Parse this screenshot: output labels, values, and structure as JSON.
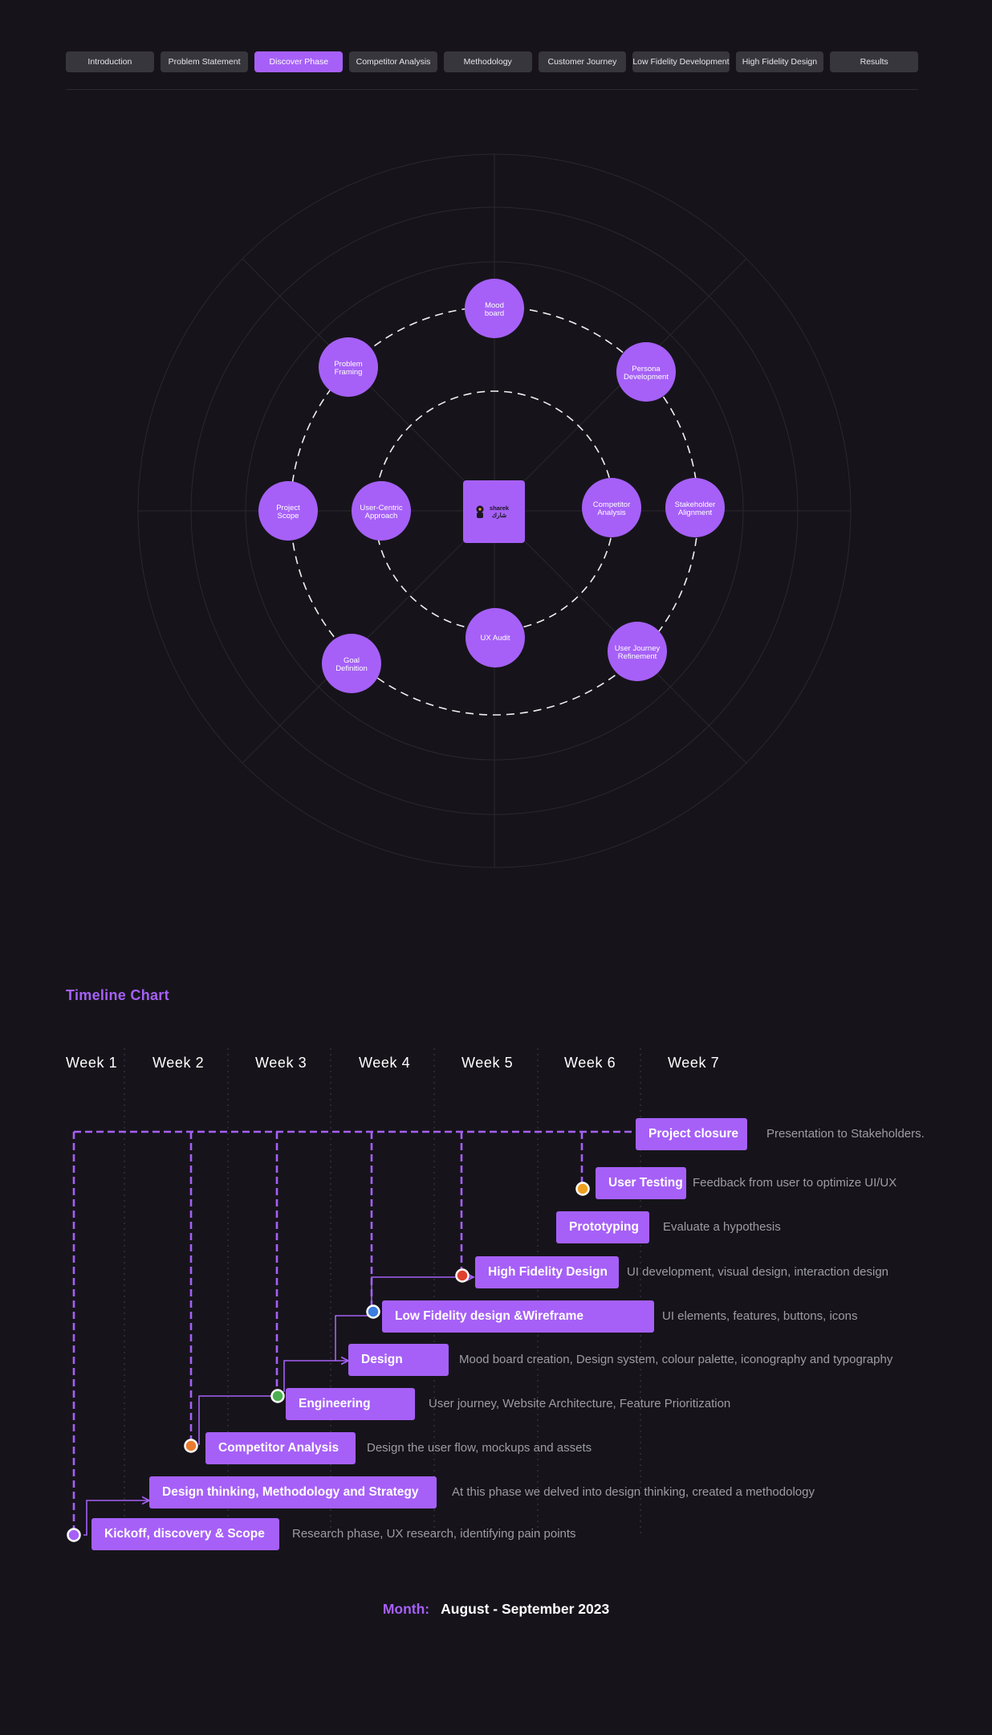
{
  "nav": {
    "tabs": [
      "Introduction",
      "Problem Statement",
      "Discover Phase",
      "Competitor Analysis",
      "Methodology",
      "Customer Journey",
      "Low Fidelity Development",
      "High Fidelity Design",
      "Results"
    ],
    "active_index": 2
  },
  "radial": {
    "center_logo": {
      "line1": "sharek",
      "line2": "شارك"
    },
    "outer_nodes": [
      {
        "lines": [
          "Mood",
          "board"
        ]
      },
      {
        "lines": [
          "Persona",
          "Development"
        ]
      },
      {
        "lines": [
          "Stakeholder",
          "Alignment"
        ]
      },
      {
        "lines": [
          "User Journey",
          "Refinement"
        ]
      },
      {
        "lines": [
          "Goal",
          "Definition"
        ]
      },
      {
        "lines": [
          "Project",
          "Scope"
        ]
      },
      {
        "lines": [
          "Problem",
          "Framing"
        ]
      }
    ],
    "inner_nodes": [
      {
        "lines": [
          "User-Centric",
          "Approach"
        ]
      },
      {
        "lines": [
          "Competitor",
          "Analysis"
        ]
      },
      {
        "lines": [
          "UX Audit"
        ]
      }
    ]
  },
  "timeline": {
    "title": "Timeline Chart",
    "weeks": [
      "Week 1",
      "Week 2",
      "Week 3",
      "Week 4",
      "Week 5",
      "Week 6",
      "Week 7"
    ],
    "tasks": [
      {
        "label": "Project closure",
        "desc": "Presentation to Stakeholders."
      },
      {
        "label": "User Testing",
        "desc": "Feedback from user to optimize UI/UX"
      },
      {
        "label": "Prototyping",
        "desc": "Evaluate a hypothesis"
      },
      {
        "label": "High Fidelity Design",
        "desc": "UI development, visual design, interaction design"
      },
      {
        "label": "Low Fidelity design &Wireframe",
        "desc": "UI elements, features, buttons, icons"
      },
      {
        "label": "Design",
        "desc": "Mood board creation, Design system, colour palette, iconography and typography"
      },
      {
        "label": "Engineering",
        "desc": "User journey, Website Architecture, Feature Prioritization"
      },
      {
        "label": "Competitor Analysis",
        "desc": "Design the user flow, mockups and assets"
      },
      {
        "label": "Design thinking, Methodology and Strategy",
        "desc": "At this phase we delved into design thinking, created a methodology"
      },
      {
        "label": "Kickoff, discovery & Scope",
        "desc": "Research phase, UX research, identifying pain points"
      }
    ],
    "month_label": "Month:",
    "month_value": "August - September 2023"
  },
  "colors": {
    "accent": "#a660f7",
    "background": "#16141a",
    "marker_orange": "#e87b2f",
    "marker_green": "#4caf50",
    "marker_blue": "#3b7de0",
    "marker_red": "#e0412e",
    "marker_yellow": "#f0a020"
  }
}
